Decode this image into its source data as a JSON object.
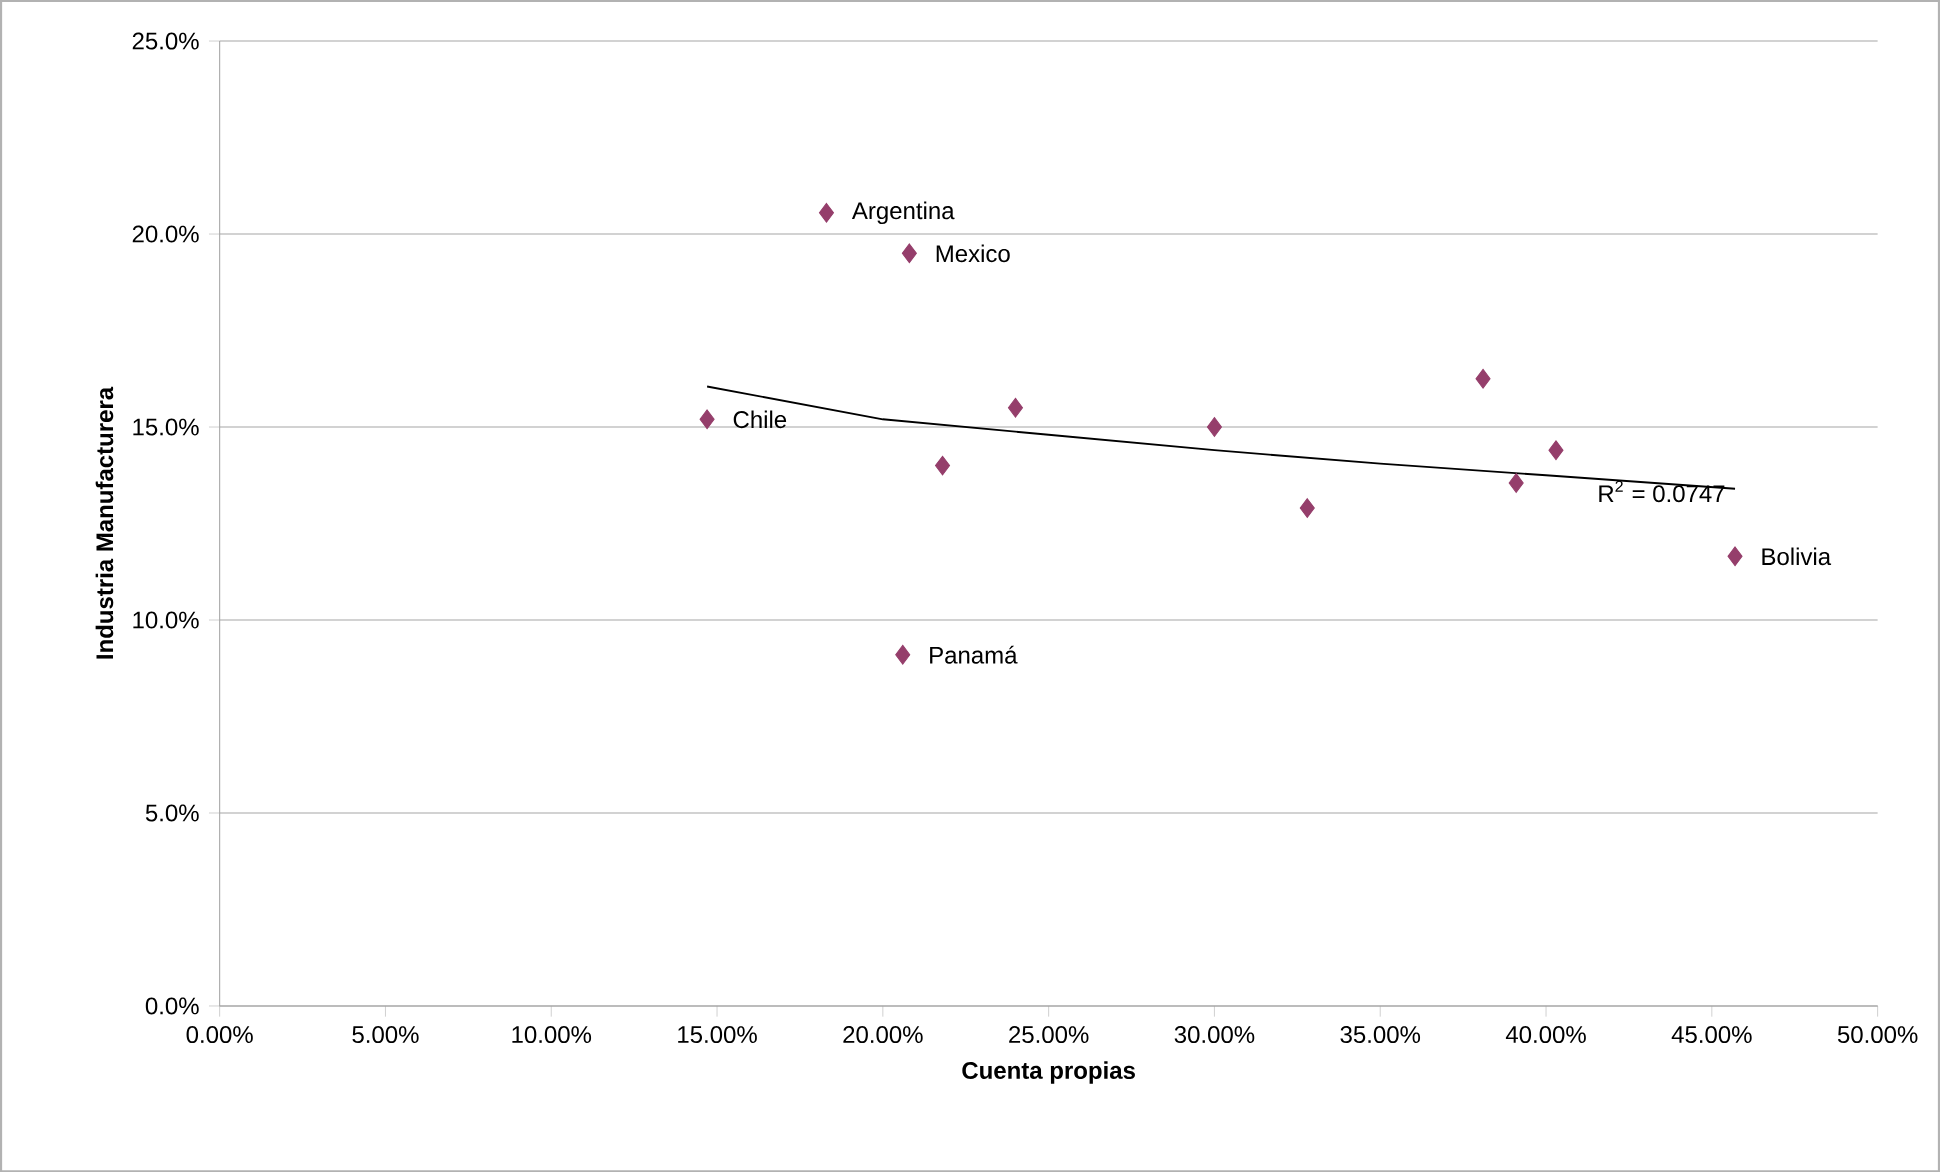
{
  "chart_data": {
    "type": "scatter",
    "xlabel": "Cuenta propias",
    "ylabel": "Industria Manufacturera",
    "xlim": [
      0,
      50
    ],
    "ylim": [
      0,
      25
    ],
    "xticks": [
      {
        "value": 0,
        "label": "0.00%"
      },
      {
        "value": 5,
        "label": "5.00%"
      },
      {
        "value": 10,
        "label": "10.00%"
      },
      {
        "value": 15,
        "label": "15.00%"
      },
      {
        "value": 20,
        "label": "20.00%"
      },
      {
        "value": 25,
        "label": "25.00%"
      },
      {
        "value": 30,
        "label": "30.00%"
      },
      {
        "value": 35,
        "label": "35.00%"
      },
      {
        "value": 40,
        "label": "40.00%"
      },
      {
        "value": 45,
        "label": "45.00%"
      },
      {
        "value": 50,
        "label": "50.00%"
      }
    ],
    "yticks": [
      {
        "value": 0,
        "label": "0.0%"
      },
      {
        "value": 5,
        "label": "5.0%"
      },
      {
        "value": 10,
        "label": "10.0%"
      },
      {
        "value": 15,
        "label": "15.0%"
      },
      {
        "value": 20,
        "label": "20.0%"
      },
      {
        "value": 25,
        "label": "25.0%"
      }
    ],
    "grid": "y",
    "marker": "diamond",
    "series": [
      {
        "color": "#953e6b",
        "x": [
          18.3,
          20.8,
          14.7,
          24.0,
          21.8,
          30.0,
          32.8,
          38.1,
          40.3,
          39.1,
          45.7,
          20.6
        ],
        "values": [
          20.55,
          19.5,
          15.2,
          15.5,
          14.0,
          15.0,
          12.9,
          16.25,
          14.4,
          13.55,
          11.65,
          9.1
        ]
      },
      {
        "type": "line",
        "marker": "none",
        "color": "#000000",
        "x": [
          14.7,
          20,
          25,
          30,
          35,
          40,
          45.7
        ],
        "values": [
          16.05,
          15.2,
          14.8,
          14.4,
          14.05,
          13.75,
          13.4
        ]
      }
    ],
    "annotations": [
      {
        "text": "Argentina",
        "x": 18.3,
        "y": 20.55
      },
      {
        "text": "Mexico",
        "x": 20.8,
        "y": 19.5
      },
      {
        "text": "Chile",
        "x": 14.7,
        "y": 15.2
      },
      {
        "text": "Bolivia",
        "x": 45.7,
        "y": 11.65
      },
      {
        "text": "Panamá",
        "x": 20.6,
        "y": 9.1
      },
      "R$^{2}$ = 0.0747"
    ]
  }
}
